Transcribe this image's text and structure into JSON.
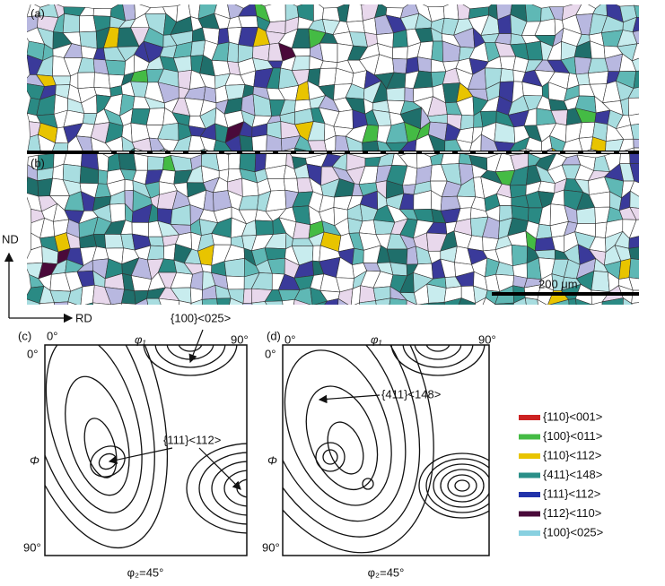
{
  "map": {
    "panels": [
      "(a)",
      "(b)"
    ],
    "scale_bar": "200 μm",
    "axes": {
      "vertical": "ND",
      "horizontal": "RD"
    }
  },
  "odf": {
    "panels": [
      {
        "label": "(c)",
        "x_start": "0°",
        "x_axis": "φ₁",
        "x_end": "90°",
        "y_start": "0°",
        "y_axis": "Φ",
        "y_end": "90°",
        "section": "φ₂=45°",
        "annotations": [
          "{100}<025>",
          "{111}<112>"
        ]
      },
      {
        "label": "(d)",
        "x_start": "0°",
        "x_axis": "φ₁",
        "x_end": "90°",
        "y_start": "0°",
        "y_axis": "Φ",
        "y_end": "90°",
        "section": "φ₂=45°",
        "annotations": [
          "{411}<148>"
        ]
      }
    ]
  },
  "legend": [
    {
      "label": "{110}<001>",
      "color": "#cc2222"
    },
    {
      "label": "{100}<011>",
      "color": "#44bb44"
    },
    {
      "label": "{110}<112>",
      "color": "#e8c400"
    },
    {
      "label": "{411}<148>",
      "color": "#2a8f88"
    },
    {
      "label": "{111}<112>",
      "color": "#2233aa"
    },
    {
      "label": "{112}<110>",
      "color": "#4a0a3a"
    },
    {
      "label": "{100}<025>",
      "color": "#88d0e0"
    }
  ]
}
